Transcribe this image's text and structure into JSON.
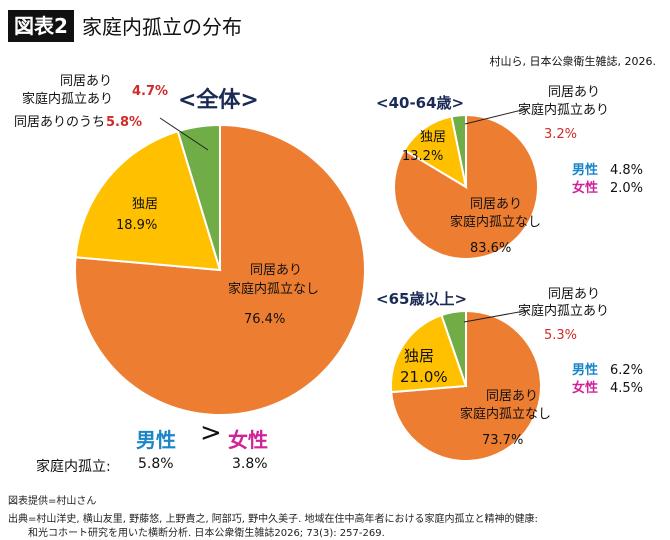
{
  "header": {
    "badge": "図表2",
    "title": "家庭内孤立の分布"
  },
  "citation": "村山ら, 日本公衆衛生雑誌, 2026.",
  "colors": {
    "none": "#ED7D31",
    "alone": "#FFC000",
    "isolated": "#70AD47"
  },
  "chart_data": [
    {
      "type": "pie",
      "title": "<全体>",
      "slices": [
        {
          "label": "同居あり家庭内孤立なし",
          "value": 76.4,
          "color": "#ED7D31"
        },
        {
          "label": "独居",
          "value": 18.9,
          "color": "#FFC000"
        },
        {
          "label": "同居あり家庭内孤立あり",
          "value": 4.7,
          "color": "#70AD47"
        }
      ],
      "note": {
        "label": "同居ありのうち",
        "value": "5.8%"
      },
      "sex": {
        "male_label": "男性",
        "female_label": "女性",
        "row_label": "家庭内孤立:",
        "male": "5.8%",
        "female": "3.8%",
        "symbol": ">"
      }
    },
    {
      "type": "pie",
      "title": "<40-64歳>",
      "slices": [
        {
          "label": "同居あり家庭内孤立なし",
          "value": 83.6,
          "color": "#ED7D31"
        },
        {
          "label": "独居",
          "value": 13.2,
          "color": "#FFC000"
        },
        {
          "label": "同居あり家庭内孤立あり",
          "value": 3.2,
          "color": "#70AD47"
        }
      ],
      "sex": {
        "male_label": "男性",
        "female_label": "女性",
        "male": "4.8%",
        "female": "2.0%"
      }
    },
    {
      "type": "pie",
      "title": "<65歳以上>",
      "slices": [
        {
          "label": "同居あり家庭内孤立なし",
          "value": 73.7,
          "color": "#ED7D31"
        },
        {
          "label": "独居",
          "value": 21.0,
          "color": "#FFC000"
        },
        {
          "label": "同居あり家庭内孤立あり",
          "value": 5.3,
          "color": "#70AD47"
        }
      ],
      "sex": {
        "male_label": "男性",
        "female_label": "女性",
        "male": "6.2%",
        "female": "4.5%"
      }
    }
  ],
  "text": {
    "main_iso_1": "同居あり",
    "main_iso_2": "家庭内孤立あり",
    "main_iso_val": "4.7%",
    "main_alone": "独居",
    "main_alone_val": "18.9%",
    "main_none_1": "同居あり",
    "main_none_2": "家庭内孤立なし",
    "main_none_val": "76.4%",
    "main_note_label": "同居ありのうち",
    "main_note_val": "5.8%",
    "main_male": "男性",
    "main_gt": ">",
    "main_female": "女性",
    "main_row_label": "家庭内孤立:",
    "main_male_val": "5.8%",
    "main_female_val": "3.8%",
    "a_title": "<40-64歳>",
    "a_iso_1": "同居あり",
    "a_iso_2": "家庭内孤立あり",
    "a_iso_val": "3.2%",
    "a_alone": "独居",
    "a_alone_val": "13.2%",
    "a_none_1": "同居あり",
    "a_none_2": "家庭内孤立なし",
    "a_none_val": "83.6%",
    "a_male": "男性",
    "a_male_val": "4.8%",
    "a_female": "女性",
    "a_female_val": "2.0%",
    "b_title": "<65歳以上>",
    "b_iso_1": "同居あり",
    "b_iso_2": "家庭内孤立あり",
    "b_iso_val": "5.3%",
    "b_alone": "独居",
    "b_alone_val": "21.0%",
    "b_none_1": "同居あり",
    "b_none_2": "家庭内孤立なし",
    "b_none_val": "73.7%",
    "b_male": "男性",
    "b_male_val": "6.2%",
    "b_female": "女性",
    "b_female_val": "4.5%"
  },
  "footer": {
    "credit": "図表提供=村山さん",
    "source_1": "出典=村山洋史, 横山友里, 野藤悠, 上野貴之, 阿部巧, 野中久美子. 地域在住中高年者における家庭内孤立と精神的健康:",
    "source_2": "和光コホート研究を用いた横断分析. 日本公衆衛生雑誌2026; 73(3): 257-269."
  }
}
